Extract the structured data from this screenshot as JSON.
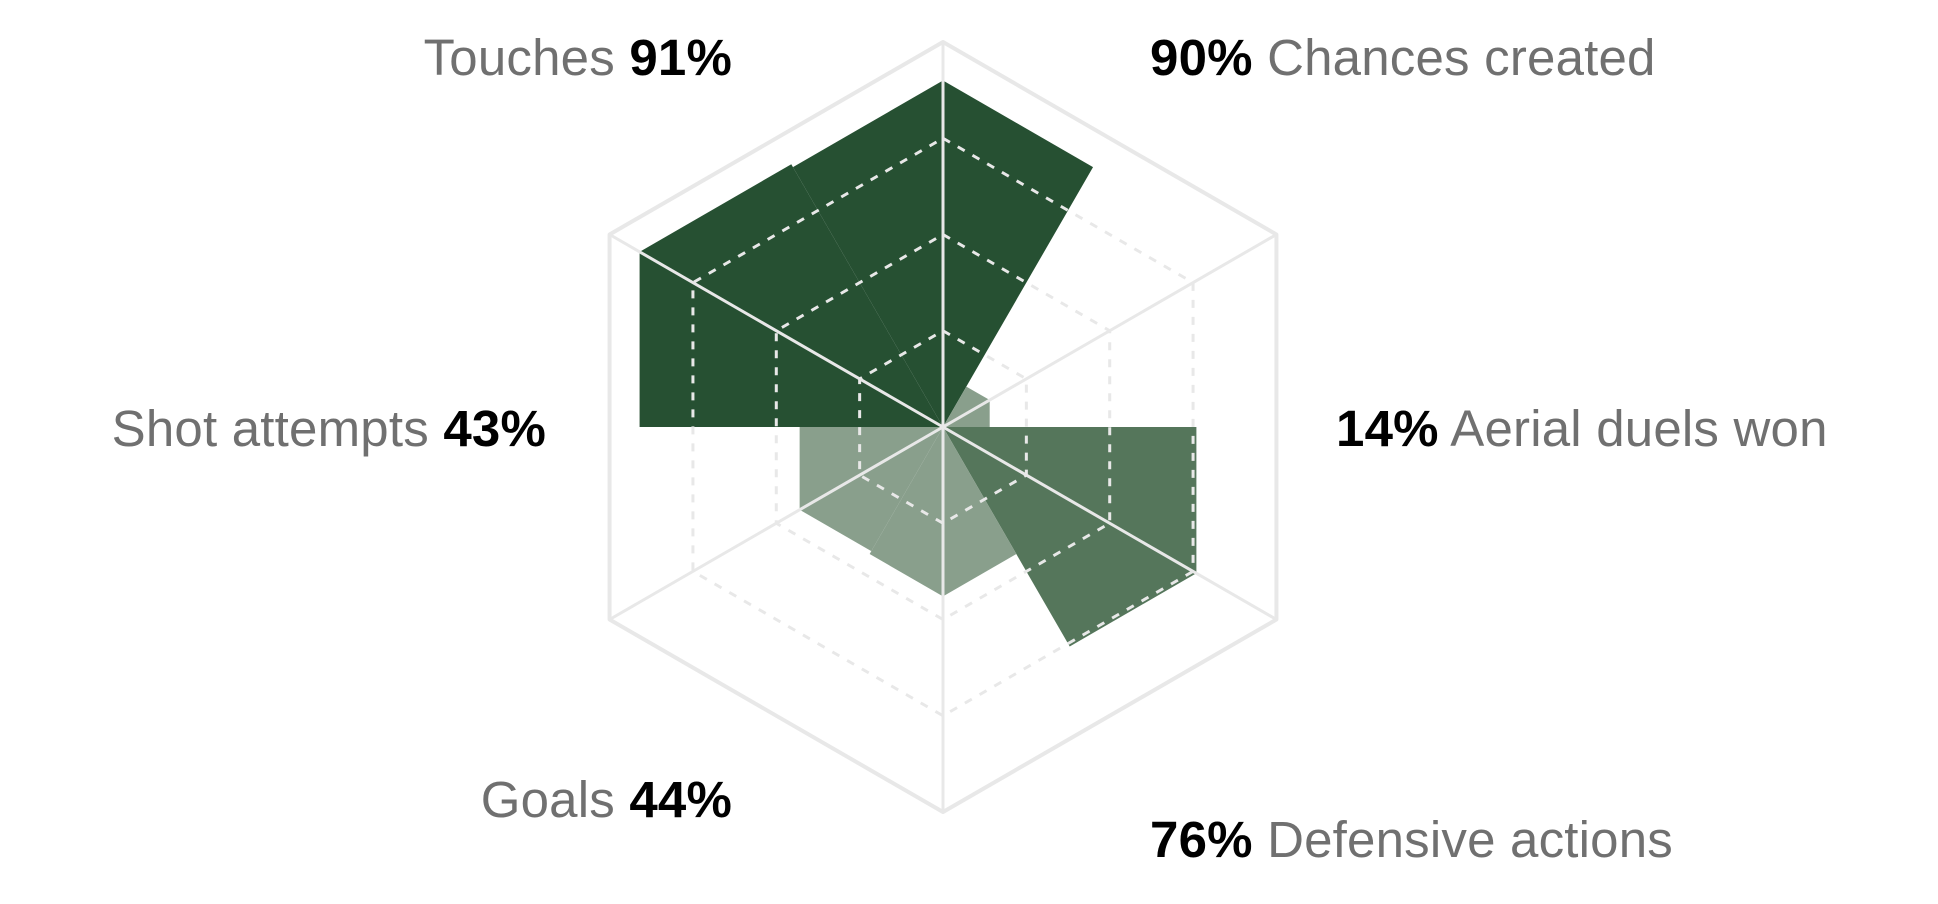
{
  "chart_data": {
    "type": "radar",
    "unit": "%",
    "range": [
      0,
      100
    ],
    "rings": [
      25,
      50,
      75,
      100
    ],
    "axes": [
      {
        "key": "chances_created",
        "label": "Chances created",
        "display": "90%",
        "value": 90,
        "shade": "dark"
      },
      {
        "key": "aerial_duels_won",
        "label": "Aerial duels won",
        "display": "14%",
        "value": 14,
        "shade": "light"
      },
      {
        "key": "defensive_actions",
        "label": "Defensive actions",
        "display": "76%",
        "value": 76,
        "shade": "medium"
      },
      {
        "key": "goals",
        "label": "Goals",
        "display": "44%",
        "value": 44,
        "shade": "light"
      },
      {
        "key": "shot_attempts",
        "label": "Shot attempts",
        "display": "43%",
        "value": 43,
        "shade": "light"
      },
      {
        "key": "touches",
        "label": "Touches",
        "display": "91%",
        "value": 91,
        "shade": "dark"
      }
    ],
    "colors": {
      "dark": "#265032",
      "medium": "#55765b",
      "light": "#899f8c",
      "grid": "#e8e8e8",
      "label": "#707070",
      "value": "#000000"
    }
  }
}
